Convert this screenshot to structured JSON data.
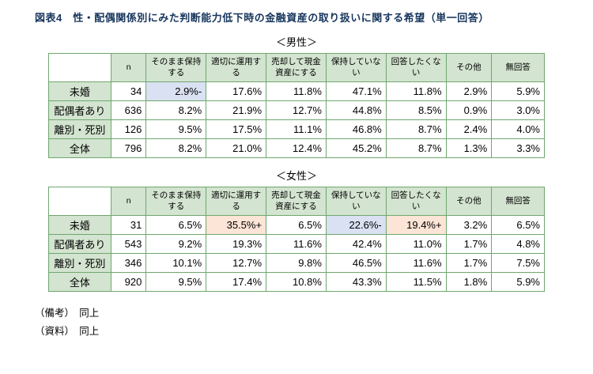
{
  "title": "図表4　性・配偶関係別にみた判断能力低下時の金融資産の取り扱いに関する希望（単一回答）",
  "colors": {
    "border_green": "#6fa76f",
    "header_bg_green": "#d3e4d0",
    "highlight_blue": "#d9e1f2",
    "highlight_orange": "#fce4d6",
    "title_navy": "#17365d"
  },
  "tables": [
    {
      "caption": "＜男性＞",
      "columns": [
        "n",
        "そのまま保持する",
        "適切に運用する",
        "売却して現金資産にする",
        "保持していない",
        "回答したくない",
        "その他",
        "無回答"
      ],
      "rows": [
        {
          "label": "未婚",
          "cells": [
            "34",
            "2.9%-",
            "17.6%",
            "11.8%",
            "47.1%",
            "11.8%",
            "2.9%",
            "5.9%"
          ]
        },
        {
          "label": "配偶者あり",
          "cells": [
            "636",
            "8.2%",
            "21.9%",
            "12.7%",
            "44.8%",
            "8.5%",
            "0.9%",
            "3.0%"
          ]
        },
        {
          "label": "離別・死別",
          "cells": [
            "126",
            "9.5%",
            "17.5%",
            "11.1%",
            "46.8%",
            "8.7%",
            "2.4%",
            "4.0%"
          ]
        },
        {
          "label": "全体",
          "cells": [
            "796",
            "8.2%",
            "21.0%",
            "12.4%",
            "45.2%",
            "8.7%",
            "1.3%",
            "3.3%"
          ]
        }
      ],
      "highlights": [
        {
          "row": 0,
          "col": 1,
          "color": "blue"
        }
      ]
    },
    {
      "caption": "＜女性＞",
      "columns": [
        "n",
        "そのまま保持する",
        "適切に運用する",
        "売却して現金資産にする",
        "保持していない",
        "回答したくない",
        "その他",
        "無回答"
      ],
      "rows": [
        {
          "label": "未婚",
          "cells": [
            "31",
            "6.5%",
            "35.5%+",
            "6.5%",
            "22.6%-",
            "19.4%+",
            "3.2%",
            "6.5%"
          ]
        },
        {
          "label": "配偶者あり",
          "cells": [
            "543",
            "9.2%",
            "19.3%",
            "11.6%",
            "42.4%",
            "11.0%",
            "1.7%",
            "4.8%"
          ]
        },
        {
          "label": "離別・死別",
          "cells": [
            "346",
            "10.1%",
            "12.7%",
            "9.8%",
            "46.5%",
            "11.6%",
            "1.7%",
            "7.5%"
          ]
        },
        {
          "label": "全体",
          "cells": [
            "920",
            "9.5%",
            "17.4%",
            "10.8%",
            "43.3%",
            "11.5%",
            "1.8%",
            "5.9%"
          ]
        }
      ],
      "highlights": [
        {
          "row": 0,
          "col": 2,
          "color": "orange"
        },
        {
          "row": 0,
          "col": 4,
          "color": "blue"
        },
        {
          "row": 0,
          "col": 5,
          "color": "orange"
        }
      ]
    }
  ],
  "footnotes": [
    "（備考）　同上",
    "（資料）　同上"
  ]
}
